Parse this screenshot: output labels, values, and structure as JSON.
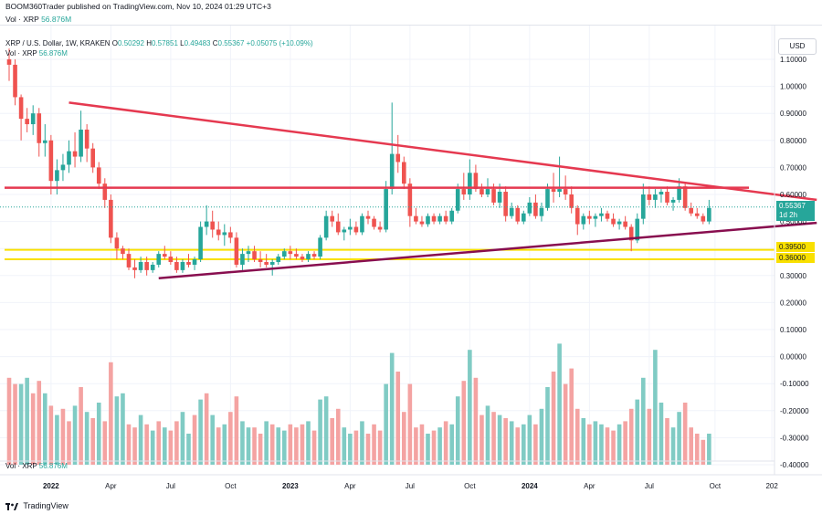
{
  "header": {
    "publisher_line": "BOOM360Trader published on TradingView.com, Nov 10, 2024 01:29 UTC+3"
  },
  "vol_top": {
    "label": "Vol · XRP",
    "value": "56.876M"
  },
  "legend": {
    "symbol": "XRP / U.S. Dollar, 1W, KRAKEN",
    "o_label": "O",
    "o": "0.50292",
    "h_label": "H",
    "h": "0.57851",
    "l_label": "L",
    "l": "0.49483",
    "c_label": "C",
    "c": "0.55367",
    "change": "+0.05075 (+10.09%)"
  },
  "vol_legend": {
    "label": "Vol · XRP",
    "value": "56.876M"
  },
  "usd_button": "USD",
  "tags": {
    "current_price": "0.55367",
    "countdown": "1d 2h",
    "level1": "0.39500",
    "level2": "0.36000"
  },
  "footer": {
    "brand": "TradingView"
  },
  "colors": {
    "up": "#26a69a",
    "down": "#ef5350",
    "up_vol": "#80cbc4",
    "down_vol": "#f4a3a2",
    "resistance": "#e53950",
    "support_line": "#880e4f",
    "zone": "#f9e000"
  },
  "chart_data": {
    "type": "candlestick",
    "price_axis_ticks": [
      "1.10000",
      "1.00000",
      "0.90000",
      "0.80000",
      "0.70000",
      "0.60000",
      "0.50000",
      "0.40000",
      "0.30000",
      "0.20000",
      "0.10000",
      "0.00000",
      "-0.10000",
      "-0.20000",
      "-0.30000",
      "-0.40000"
    ],
    "price_range": [
      -0.4,
      1.15
    ],
    "time_axis_ticks": [
      "2022",
      "Apr",
      "Jul",
      "Oct",
      "2023",
      "Apr",
      "Jul",
      "Oct",
      "2024",
      "Apr",
      "Jul",
      "Oct",
      "202"
    ],
    "drawings": {
      "descending_trendline": {
        "from": {
          "week": 10,
          "price": 0.94
        },
        "to": {
          "week": 135,
          "price": 0.58
        }
      },
      "horizontal_resistance": 0.625,
      "ascending_support": {
        "from": {
          "week": 25,
          "price": 0.29
        },
        "to": {
          "week": 135,
          "price": 0.495
        }
      },
      "support_zone": [
        0.36,
        0.395
      ]
    },
    "candles": [
      [
        1.1,
        1.14,
        1.02,
        1.08
      ],
      [
        1.08,
        1.1,
        0.93,
        0.96
      ],
      [
        0.96,
        0.97,
        0.8,
        0.88
      ],
      [
        0.88,
        0.92,
        0.83,
        0.86
      ],
      [
        0.86,
        0.93,
        0.82,
        0.9
      ],
      [
        0.9,
        0.92,
        0.74,
        0.79
      ],
      [
        0.79,
        0.86,
        0.74,
        0.8
      ],
      [
        0.8,
        0.82,
        0.6,
        0.65
      ],
      [
        0.65,
        0.73,
        0.6,
        0.69
      ],
      [
        0.69,
        0.75,
        0.65,
        0.71
      ],
      [
        0.71,
        0.8,
        0.68,
        0.76
      ],
      [
        0.76,
        0.83,
        0.7,
        0.74
      ],
      [
        0.74,
        0.91,
        0.72,
        0.84
      ],
      [
        0.84,
        0.86,
        0.72,
        0.77
      ],
      [
        0.77,
        0.79,
        0.68,
        0.7
      ],
      [
        0.7,
        0.72,
        0.62,
        0.64
      ],
      [
        0.64,
        0.66,
        0.55,
        0.58
      ],
      [
        0.58,
        0.6,
        0.42,
        0.44
      ],
      [
        0.44,
        0.46,
        0.36,
        0.4
      ],
      [
        0.4,
        0.41,
        0.36,
        0.38
      ],
      [
        0.38,
        0.4,
        0.32,
        0.33
      ],
      [
        0.33,
        0.36,
        0.29,
        0.32
      ],
      [
        0.32,
        0.37,
        0.31,
        0.35
      ],
      [
        0.35,
        0.37,
        0.3,
        0.32
      ],
      [
        0.32,
        0.35,
        0.31,
        0.34
      ],
      [
        0.34,
        0.39,
        0.33,
        0.38
      ],
      [
        0.38,
        0.41,
        0.36,
        0.37
      ],
      [
        0.37,
        0.39,
        0.34,
        0.35
      ],
      [
        0.35,
        0.37,
        0.31,
        0.32
      ],
      [
        0.32,
        0.36,
        0.31,
        0.35
      ],
      [
        0.35,
        0.38,
        0.33,
        0.34
      ],
      [
        0.34,
        0.37,
        0.32,
        0.36
      ],
      [
        0.36,
        0.5,
        0.35,
        0.48
      ],
      [
        0.48,
        0.56,
        0.45,
        0.5
      ],
      [
        0.5,
        0.54,
        0.44,
        0.47
      ],
      [
        0.47,
        0.5,
        0.43,
        0.45
      ],
      [
        0.45,
        0.49,
        0.41,
        0.46
      ],
      [
        0.46,
        0.48,
        0.42,
        0.44
      ],
      [
        0.44,
        0.46,
        0.33,
        0.34
      ],
      [
        0.34,
        0.4,
        0.32,
        0.38
      ],
      [
        0.38,
        0.41,
        0.35,
        0.39
      ],
      [
        0.39,
        0.41,
        0.35,
        0.36
      ],
      [
        0.36,
        0.39,
        0.33,
        0.35
      ],
      [
        0.35,
        0.38,
        0.33,
        0.34
      ],
      [
        0.34,
        0.36,
        0.3,
        0.35
      ],
      [
        0.35,
        0.38,
        0.34,
        0.37
      ],
      [
        0.37,
        0.4,
        0.36,
        0.39
      ],
      [
        0.39,
        0.41,
        0.36,
        0.38
      ],
      [
        0.38,
        0.4,
        0.36,
        0.37
      ],
      [
        0.37,
        0.38,
        0.35,
        0.36
      ],
      [
        0.36,
        0.39,
        0.35,
        0.38
      ],
      [
        0.38,
        0.39,
        0.36,
        0.37
      ],
      [
        0.37,
        0.45,
        0.36,
        0.44
      ],
      [
        0.44,
        0.54,
        0.43,
        0.52
      ],
      [
        0.52,
        0.54,
        0.48,
        0.5
      ],
      [
        0.5,
        0.53,
        0.45,
        0.46
      ],
      [
        0.46,
        0.48,
        0.43,
        0.47
      ],
      [
        0.47,
        0.51,
        0.45,
        0.48
      ],
      [
        0.48,
        0.5,
        0.45,
        0.46
      ],
      [
        0.46,
        0.53,
        0.45,
        0.52
      ],
      [
        0.52,
        0.54,
        0.49,
        0.51
      ],
      [
        0.51,
        0.52,
        0.47,
        0.48
      ],
      [
        0.48,
        0.5,
        0.46,
        0.47
      ],
      [
        0.47,
        0.65,
        0.46,
        0.62
      ],
      [
        0.62,
        0.94,
        0.6,
        0.75
      ],
      [
        0.75,
        0.82,
        0.68,
        0.72
      ],
      [
        0.72,
        0.74,
        0.62,
        0.64
      ],
      [
        0.64,
        0.66,
        0.48,
        0.52
      ],
      [
        0.52,
        0.55,
        0.49,
        0.5
      ],
      [
        0.5,
        0.52,
        0.48,
        0.49
      ],
      [
        0.49,
        0.53,
        0.48,
        0.52
      ],
      [
        0.52,
        0.53,
        0.49,
        0.5
      ],
      [
        0.5,
        0.53,
        0.49,
        0.52
      ],
      [
        0.52,
        0.54,
        0.49,
        0.5
      ],
      [
        0.5,
        0.55,
        0.49,
        0.54
      ],
      [
        0.54,
        0.64,
        0.53,
        0.62
      ],
      [
        0.62,
        0.68,
        0.58,
        0.6
      ],
      [
        0.6,
        0.73,
        0.58,
        0.68
      ],
      [
        0.68,
        0.71,
        0.61,
        0.62
      ],
      [
        0.62,
        0.64,
        0.59,
        0.6
      ],
      [
        0.6,
        0.66,
        0.59,
        0.62
      ],
      [
        0.62,
        0.64,
        0.56,
        0.57
      ],
      [
        0.57,
        0.64,
        0.55,
        0.61
      ],
      [
        0.61,
        0.63,
        0.5,
        0.52
      ],
      [
        0.52,
        0.57,
        0.51,
        0.55
      ],
      [
        0.55,
        0.56,
        0.49,
        0.5
      ],
      [
        0.5,
        0.54,
        0.49,
        0.53
      ],
      [
        0.53,
        0.59,
        0.52,
        0.57
      ],
      [
        0.57,
        0.6,
        0.51,
        0.52
      ],
      [
        0.52,
        0.57,
        0.5,
        0.55
      ],
      [
        0.55,
        0.64,
        0.54,
        0.62
      ],
      [
        0.62,
        0.68,
        0.57,
        0.61
      ],
      [
        0.61,
        0.74,
        0.59,
        0.62
      ],
      [
        0.62,
        0.67,
        0.58,
        0.6
      ],
      [
        0.6,
        0.63,
        0.53,
        0.55
      ],
      [
        0.55,
        0.56,
        0.45,
        0.49
      ],
      [
        0.49,
        0.53,
        0.47,
        0.52
      ],
      [
        0.52,
        0.54,
        0.49,
        0.51
      ],
      [
        0.51,
        0.53,
        0.48,
        0.52
      ],
      [
        0.52,
        0.55,
        0.5,
        0.53
      ],
      [
        0.53,
        0.54,
        0.5,
        0.51
      ],
      [
        0.51,
        0.53,
        0.48,
        0.49
      ],
      [
        0.49,
        0.51,
        0.47,
        0.5
      ],
      [
        0.5,
        0.52,
        0.47,
        0.48
      ],
      [
        0.48,
        0.49,
        0.39,
        0.43
      ],
      [
        0.43,
        0.53,
        0.42,
        0.51
      ],
      [
        0.51,
        0.64,
        0.49,
        0.6
      ],
      [
        0.6,
        0.63,
        0.56,
        0.58
      ],
      [
        0.58,
        0.62,
        0.55,
        0.6
      ],
      [
        0.6,
        0.62,
        0.57,
        0.61
      ],
      [
        0.61,
        0.63,
        0.56,
        0.57
      ],
      [
        0.57,
        0.59,
        0.54,
        0.58
      ],
      [
        0.58,
        0.66,
        0.57,
        0.63
      ],
      [
        0.63,
        0.64,
        0.54,
        0.55
      ],
      [
        0.55,
        0.57,
        0.52,
        0.53
      ],
      [
        0.53,
        0.55,
        0.51,
        0.52
      ],
      [
        0.52,
        0.53,
        0.49,
        0.5
      ],
      [
        0.5,
        0.58,
        0.49,
        0.55
      ]
    ],
    "volume": [
      {
        "v": 0.28,
        "up": false
      },
      {
        "v": 0.26,
        "up": false
      },
      {
        "v": 0.26,
        "up": true
      },
      {
        "v": 0.28,
        "up": true
      },
      {
        "v": 0.23,
        "up": false
      },
      {
        "v": 0.27,
        "up": false
      },
      {
        "v": 0.23,
        "up": true
      },
      {
        "v": 0.19,
        "up": false
      },
      {
        "v": 0.16,
        "up": true
      },
      {
        "v": 0.18,
        "up": false
      },
      {
        "v": 0.14,
        "up": false
      },
      {
        "v": 0.19,
        "up": true
      },
      {
        "v": 0.25,
        "up": false
      },
      {
        "v": 0.17,
        "up": true
      },
      {
        "v": 0.15,
        "up": false
      },
      {
        "v": 0.2,
        "up": true
      },
      {
        "v": 0.14,
        "up": false
      },
      {
        "v": 0.33,
        "up": false
      },
      {
        "v": 0.22,
        "up": true
      },
      {
        "v": 0.23,
        "up": true
      },
      {
        "v": 0.13,
        "up": false
      },
      {
        "v": 0.12,
        "up": false
      },
      {
        "v": 0.16,
        "up": true
      },
      {
        "v": 0.13,
        "up": false
      },
      {
        "v": 0.11,
        "up": true
      },
      {
        "v": 0.14,
        "up": false
      },
      {
        "v": 0.12,
        "up": true
      },
      {
        "v": 0.11,
        "up": false
      },
      {
        "v": 0.14,
        "up": false
      },
      {
        "v": 0.17,
        "up": true
      },
      {
        "v": 0.1,
        "up": true
      },
      {
        "v": 0.16,
        "up": false
      },
      {
        "v": 0.21,
        "up": true
      },
      {
        "v": 0.23,
        "up": false
      },
      {
        "v": 0.16,
        "up": true
      },
      {
        "v": 0.12,
        "up": false
      },
      {
        "v": 0.13,
        "up": true
      },
      {
        "v": 0.17,
        "up": false
      },
      {
        "v": 0.22,
        "up": false
      },
      {
        "v": 0.14,
        "up": true
      },
      {
        "v": 0.12,
        "up": true
      },
      {
        "v": 0.12,
        "up": false
      },
      {
        "v": 0.1,
        "up": false
      },
      {
        "v": 0.14,
        "up": true
      },
      {
        "v": 0.13,
        "up": false
      },
      {
        "v": 0.12,
        "up": true
      },
      {
        "v": 0.11,
        "up": true
      },
      {
        "v": 0.13,
        "up": false
      },
      {
        "v": 0.12,
        "up": false
      },
      {
        "v": 0.13,
        "up": false
      },
      {
        "v": 0.14,
        "up": true
      },
      {
        "v": 0.11,
        "up": false
      },
      {
        "v": 0.21,
        "up": true
      },
      {
        "v": 0.22,
        "up": true
      },
      {
        "v": 0.15,
        "up": false
      },
      {
        "v": 0.18,
        "up": false
      },
      {
        "v": 0.12,
        "up": true
      },
      {
        "v": 0.1,
        "up": true
      },
      {
        "v": 0.11,
        "up": false
      },
      {
        "v": 0.14,
        "up": true
      },
      {
        "v": 0.1,
        "up": false
      },
      {
        "v": 0.13,
        "up": false
      },
      {
        "v": 0.11,
        "up": false
      },
      {
        "v": 0.26,
        "up": true
      },
      {
        "v": 0.36,
        "up": true
      },
      {
        "v": 0.3,
        "up": false
      },
      {
        "v": 0.17,
        "up": false
      },
      {
        "v": 0.26,
        "up": false
      },
      {
        "v": 0.12,
        "up": false
      },
      {
        "v": 0.13,
        "up": false
      },
      {
        "v": 0.1,
        "up": true
      },
      {
        "v": 0.11,
        "up": false
      },
      {
        "v": 0.12,
        "up": true
      },
      {
        "v": 0.14,
        "up": false
      },
      {
        "v": 0.13,
        "up": true
      },
      {
        "v": 0.22,
        "up": true
      },
      {
        "v": 0.27,
        "up": false
      },
      {
        "v": 0.37,
        "up": true
      },
      {
        "v": 0.28,
        "up": false
      },
      {
        "v": 0.16,
        "up": false
      },
      {
        "v": 0.19,
        "up": true
      },
      {
        "v": 0.17,
        "up": false
      },
      {
        "v": 0.16,
        "up": true
      },
      {
        "v": 0.15,
        "up": false
      },
      {
        "v": 0.14,
        "up": true
      },
      {
        "v": 0.12,
        "up": false
      },
      {
        "v": 0.13,
        "up": true
      },
      {
        "v": 0.16,
        "up": true
      },
      {
        "v": 0.13,
        "up": false
      },
      {
        "v": 0.18,
        "up": true
      },
      {
        "v": 0.25,
        "up": true
      },
      {
        "v": 0.3,
        "up": false
      },
      {
        "v": 0.39,
        "up": true
      },
      {
        "v": 0.26,
        "up": false
      },
      {
        "v": 0.31,
        "up": false
      },
      {
        "v": 0.18,
        "up": false
      },
      {
        "v": 0.15,
        "up": true
      },
      {
        "v": 0.13,
        "up": false
      },
      {
        "v": 0.14,
        "up": true
      },
      {
        "v": 0.13,
        "up": true
      },
      {
        "v": 0.12,
        "up": false
      },
      {
        "v": 0.11,
        "up": false
      },
      {
        "v": 0.13,
        "up": true
      },
      {
        "v": 0.14,
        "up": false
      },
      {
        "v": 0.18,
        "up": false
      },
      {
        "v": 0.21,
        "up": true
      },
      {
        "v": 0.28,
        "up": true
      },
      {
        "v": 0.18,
        "up": false
      },
      {
        "v": 0.37,
        "up": true
      },
      {
        "v": 0.2,
        "up": true
      },
      {
        "v": 0.15,
        "up": false
      },
      {
        "v": 0.12,
        "up": true
      },
      {
        "v": 0.17,
        "up": true
      },
      {
        "v": 0.2,
        "up": false
      },
      {
        "v": 0.12,
        "up": false
      },
      {
        "v": 0.1,
        "up": false
      },
      {
        "v": 0.08,
        "up": false
      },
      {
        "v": 0.1,
        "up": true
      }
    ]
  }
}
